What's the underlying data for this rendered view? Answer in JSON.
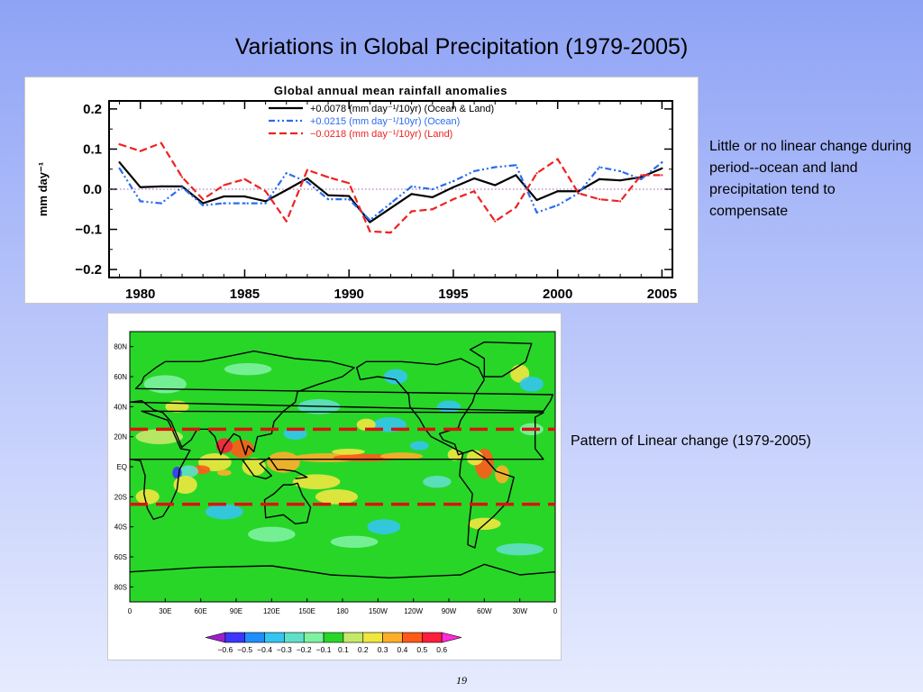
{
  "slide": {
    "title": "Variations in Global Precipitation (1979-2005)",
    "note_trend": "Little or no linear change during period--ocean and land precipitation tend to compensate",
    "note_map": "Pattern of Linear change (1979-2005)",
    "page_number": "19"
  },
  "chart_data": [
    {
      "type": "line",
      "title": "Global annual mean rainfall anomalies",
      "ylabel": "mm day⁻¹",
      "xlabel": "",
      "xlim": [
        1978.5,
        2005.5
      ],
      "ylim": [
        -0.22,
        0.22
      ],
      "xticks": [
        1980,
        1985,
        1990,
        1995,
        2000,
        2005
      ],
      "yticks": [
        0.2,
        0.1,
        0.0,
        -0.1,
        -0.2
      ],
      "ytick_labels": [
        "0.2",
        "0.1",
        "0.0",
        "−0.1",
        "−0.2"
      ],
      "reference_line": 0.0,
      "legend_position": "top-right",
      "x": [
        1979,
        1980,
        1981,
        1982,
        1983,
        1984,
        1985,
        1986,
        1987,
        1988,
        1989,
        1990,
        1991,
        1992,
        1993,
        1994,
        1995,
        1996,
        1997,
        1998,
        1999,
        2000,
        2001,
        2002,
        2003,
        2004,
        2005
      ],
      "series": [
        {
          "name": "+0.0078 (mm day⁻¹/10yr) (Ocean & Land)",
          "color": "#000000",
          "dash": "solid",
          "values": [
            0.067,
            0.005,
            0.007,
            0.007,
            -0.035,
            -0.018,
            -0.018,
            -0.03,
            -0.002,
            0.027,
            -0.015,
            -0.017,
            -0.082,
            -0.047,
            -0.012,
            -0.02,
            0.005,
            0.027,
            0.01,
            0.035,
            -0.027,
            -0.005,
            -0.005,
            0.025,
            0.022,
            0.03,
            0.052
          ]
        },
        {
          "name": "+0.0215 (mm day⁻¹/10yr) (Ocean)",
          "color": "#2b6cf0",
          "dash": "dashdot",
          "values": [
            0.052,
            -0.03,
            -0.035,
            0.005,
            -0.04,
            -0.035,
            -0.035,
            -0.035,
            0.04,
            0.018,
            -0.025,
            -0.025,
            -0.077,
            -0.035,
            0.007,
            0.0,
            0.02,
            0.045,
            0.055,
            0.06,
            -0.058,
            -0.04,
            -0.01,
            0.055,
            0.045,
            0.025,
            0.067
          ]
        },
        {
          "name": "−0.0218 (mm day⁻¹/10yr) (Land)",
          "color": "#ee2222",
          "dash": "dashed",
          "values": [
            0.112,
            0.095,
            0.115,
            0.03,
            -0.025,
            0.01,
            0.025,
            -0.005,
            -0.08,
            0.048,
            0.03,
            0.015,
            -0.105,
            -0.108,
            -0.055,
            -0.05,
            -0.025,
            -0.005,
            -0.08,
            -0.045,
            0.04,
            0.075,
            -0.01,
            -0.025,
            -0.03,
            0.035,
            0.035
          ]
        }
      ]
    },
    {
      "type": "heatmap",
      "title": "",
      "xtick_labels": [
        "0",
        "30E",
        "60E",
        "90E",
        "120E",
        "150E",
        "180",
        "150W",
        "120W",
        "90W",
        "60W",
        "30W",
        "0"
      ],
      "ytick_labels": [
        "80N",
        "60N",
        "40N",
        "20N",
        "EQ",
        "20S",
        "40S",
        "60S",
        "80S"
      ],
      "colorbar_labels": [
        "−0.6",
        "−0.5",
        "−0.4",
        "−0.3",
        "−0.2",
        "−0.1",
        "0.1",
        "0.2",
        "0.3",
        "0.4",
        "0.5",
        "0.6"
      ],
      "colorbar_colors": [
        "#9a20c8",
        "#3b36ff",
        "#1f8fff",
        "#34c5f0",
        "#5fe0c8",
        "#7df2a0",
        "#28d628",
        "#c6e86a",
        "#f0e640",
        "#ffae2a",
        "#ff5a1a",
        "#ff1e3c",
        "#ff2ad8"
      ],
      "highlight_latitudes": [
        "25N",
        "25S"
      ],
      "highlight_color": "#dd1111"
    }
  ]
}
